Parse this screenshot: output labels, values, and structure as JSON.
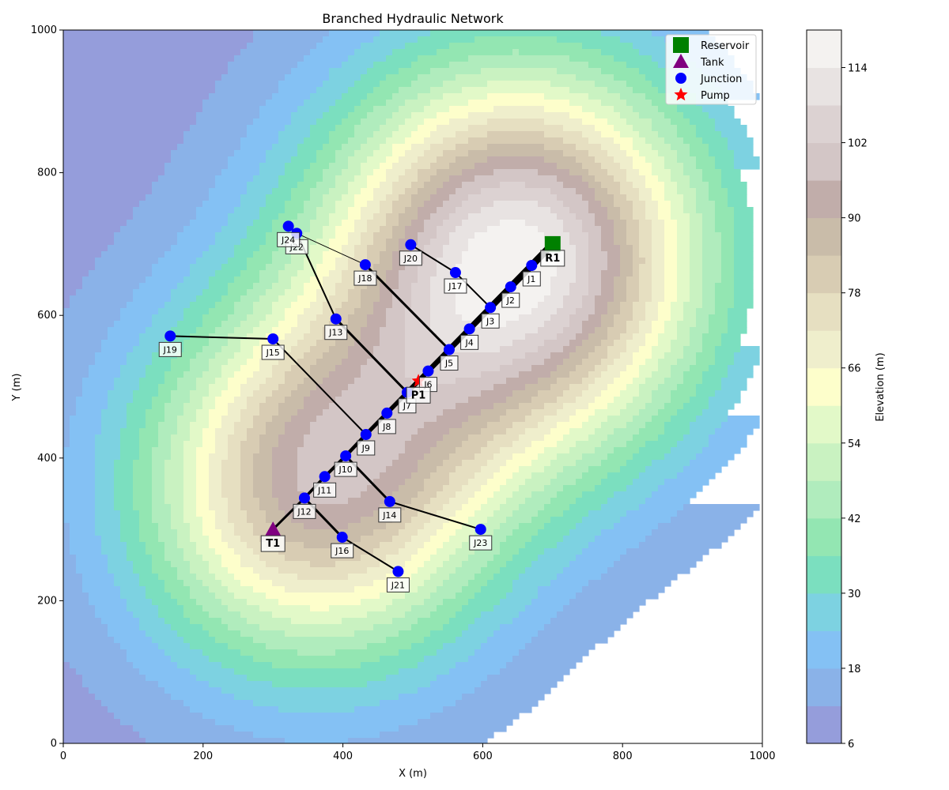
{
  "chart_data": {
    "type": "scatter",
    "title": "Branched Hydraulic Network",
    "xlabel": "X (m)",
    "ylabel": "Y (m)",
    "xlim": [
      0,
      1000
    ],
    "ylim": [
      0,
      1000
    ],
    "x_ticks": [
      0,
      200,
      400,
      600,
      800,
      1000
    ],
    "y_ticks": [
      0,
      200,
      400,
      600,
      800,
      1000
    ],
    "grid": false,
    "legend_position": "top-right",
    "legend": [
      {
        "label": "Reservoir",
        "marker": "square",
        "color": "#008000"
      },
      {
        "label": "Tank",
        "marker": "triangle",
        "color": "#800080"
      },
      {
        "label": "Junction",
        "marker": "circle",
        "color": "#0000ff"
      },
      {
        "label": "Pump",
        "marker": "star",
        "color": "#ff0000"
      }
    ],
    "colorbar": {
      "label": "Elevation (m)",
      "range": [
        6,
        120
      ],
      "levels": [
        6,
        12,
        18,
        24,
        30,
        36,
        42,
        48,
        54,
        60,
        66,
        72,
        78,
        84,
        90,
        96,
        102,
        108,
        114,
        120
      ],
      "tick_values": [
        6,
        18,
        30,
        42,
        54,
        66,
        78,
        90,
        102,
        114
      ],
      "colors": [
        "#959ddb",
        "#8ab2e8",
        "#84c1f4",
        "#7dd2e1",
        "#7bdfbf",
        "#93e6b2",
        "#b0ecbd",
        "#c9f2c1",
        "#e2f9c8",
        "#fdfecb",
        "#efeecc",
        "#e6dfc1",
        "#d8ccb3",
        "#c9bca9",
        "#c1adaa",
        "#d3c6c6",
        "#dcd2d2",
        "#e8e3e2",
        "#f4f2f0"
      ],
      "surface_peaks": [
        {
          "x": 650,
          "y": 680,
          "height": 116,
          "spread": 190
        },
        {
          "x": 360,
          "y": 360,
          "height": 90,
          "spread": 175
        }
      ],
      "surface_base": 8
    },
    "reservoirs": [
      {
        "id": "R1",
        "x": 700,
        "y": 700
      }
    ],
    "tanks": [
      {
        "id": "T1",
        "x": 300,
        "y": 300
      }
    ],
    "pumps": [
      {
        "id": "P1",
        "x": 508,
        "y": 508
      }
    ],
    "junctions": [
      {
        "id": "J1",
        "x": 670,
        "y": 670
      },
      {
        "id": "J2",
        "x": 640,
        "y": 640
      },
      {
        "id": "J3",
        "x": 611,
        "y": 611
      },
      {
        "id": "J4",
        "x": 581,
        "y": 581
      },
      {
        "id": "J5",
        "x": 552,
        "y": 552
      },
      {
        "id": "J6",
        "x": 522,
        "y": 522
      },
      {
        "id": "J7",
        "x": 492,
        "y": 492
      },
      {
        "id": "J8",
        "x": 463,
        "y": 463
      },
      {
        "id": "J9",
        "x": 433,
        "y": 433
      },
      {
        "id": "J10",
        "x": 404,
        "y": 403
      },
      {
        "id": "J11",
        "x": 374,
        "y": 374
      },
      {
        "id": "J12",
        "x": 345,
        "y": 344
      },
      {
        "id": "J13",
        "x": 390,
        "y": 595
      },
      {
        "id": "J14",
        "x": 467,
        "y": 339
      },
      {
        "id": "J15",
        "x": 300,
        "y": 567
      },
      {
        "id": "J16",
        "x": 399,
        "y": 289
      },
      {
        "id": "J17",
        "x": 561,
        "y": 660
      },
      {
        "id": "J18",
        "x": 432,
        "y": 671
      },
      {
        "id": "J19",
        "x": 153,
        "y": 571
      },
      {
        "id": "J20",
        "x": 497,
        "y": 699
      },
      {
        "id": "J21",
        "x": 479,
        "y": 241
      },
      {
        "id": "J22",
        "x": 334,
        "y": 715
      },
      {
        "id": "J23",
        "x": 597,
        "y": 300
      },
      {
        "id": "J24",
        "x": 322,
        "y": 725
      }
    ],
    "main_line": [
      "R1",
      "J1",
      "J2",
      "J3",
      "J4",
      "J5",
      "J6",
      "J7",
      "J8",
      "J9",
      "J10",
      "J11",
      "J12",
      "T1"
    ],
    "pipes": [
      {
        "from": "J20",
        "to": "J17",
        "weight": 2
      },
      {
        "from": "J17",
        "to": "J3",
        "weight": 2
      },
      {
        "from": "J22",
        "to": "J18",
        "weight": 1
      },
      {
        "from": "J18",
        "to": "J5",
        "weight": 3
      },
      {
        "from": "J24",
        "to": "J22",
        "weight": 2
      },
      {
        "from": "J22",
        "to": "J13",
        "weight": 2
      },
      {
        "from": "J13",
        "to": "J7",
        "weight": 3
      },
      {
        "from": "J19",
        "to": "J15",
        "weight": 2
      },
      {
        "from": "J15",
        "to": "J9",
        "weight": 2
      },
      {
        "from": "J10",
        "to": "J14",
        "weight": 3
      },
      {
        "from": "J14",
        "to": "J23",
        "weight": 2
      },
      {
        "from": "J12",
        "to": "J16",
        "weight": 3
      },
      {
        "from": "J16",
        "to": "J21",
        "weight": 2
      }
    ]
  }
}
